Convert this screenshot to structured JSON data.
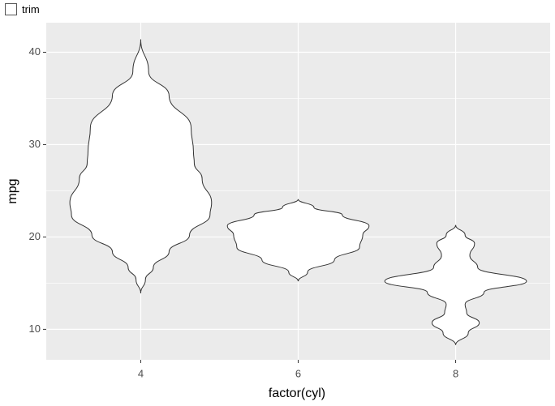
{
  "controls": {
    "trim_label": "trim"
  },
  "chart_data": {
    "type": "violin",
    "x_label": "factor(cyl)",
    "y_label": "mpg",
    "categories": [
      "4",
      "6",
      "8"
    ],
    "ylim": [
      6.7,
      43.2
    ],
    "yticks": [
      10,
      20,
      30,
      40
    ],
    "yminor": [
      15,
      25,
      35
    ],
    "grid": true,
    "fill": "#ffffff",
    "line_color": "#333333",
    "series": [
      {
        "y": [
          41.4,
          37.9,
          35.3,
          31.8,
          29.2,
          28,
          26.3,
          23.7,
          22.4,
          20.2,
          18.4,
          16.7,
          15.4,
          13.9
        ],
        "width": [
          0,
          0.05,
          0.18,
          0.32,
          0.335,
          0.34,
          0.39,
          0.45,
          0.44,
          0.31,
          0.18,
          0.08,
          0.03,
          0
        ]
      },
      {
        "y": [
          24.1,
          23.2,
          22.4,
          21.2,
          20.2,
          18.9,
          17.5,
          16.2,
          15.2
        ],
        "width": [
          0,
          0.1,
          0.28,
          0.45,
          0.41,
          0.39,
          0.23,
          0.06,
          0
        ]
      },
      {
        "y": [
          21.3,
          20.2,
          19.3,
          18,
          16.7,
          15.2,
          14,
          12.7,
          11.8,
          10.7,
          9.6,
          8.3
        ],
        "width": [
          0,
          0.06,
          0.12,
          0.09,
          0.14,
          0.45,
          0.18,
          0.06,
          0.07,
          0.15,
          0.08,
          0
        ]
      }
    ]
  }
}
